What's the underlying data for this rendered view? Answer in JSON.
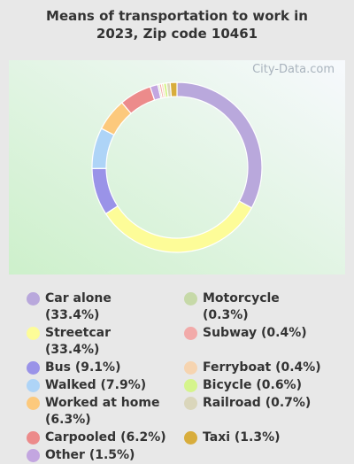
{
  "chart_data": {
    "type": "donut",
    "title": "Means of transportation to work in 2023, Zip code 10461",
    "watermark": "City-Data.com",
    "categories": [
      "Car alone (33.4%)",
      "Streetcar (33.4%)",
      "Bus (9.1%)",
      "Walked (7.9%)",
      "Worked at home (6.3%)",
      "Carpooled (6.2%)",
      "Other (1.5%)",
      "Motorcycle (0.3%)",
      "Subway (0.4%)",
      "Ferryboat (0.4%)",
      "Bicycle (0.6%)",
      "Railroad (0.7%)",
      "Taxi (1.3%)"
    ],
    "values": [
      33.4,
      33.4,
      9.1,
      7.9,
      6.3,
      6.2,
      1.5,
      0.3,
      0.4,
      0.4,
      0.6,
      0.7,
      1.3
    ],
    "colors": [
      "#b9a8dc",
      "#fdfc98",
      "#9a93e8",
      "#aed4f7",
      "#fcc97c",
      "#ec8b8b",
      "#c3a6e0",
      "#c6d9a8",
      "#f2aaa9",
      "#f6d4b0",
      "#d5f48c",
      "#dad6bb",
      "#d8ad3c"
    ]
  }
}
